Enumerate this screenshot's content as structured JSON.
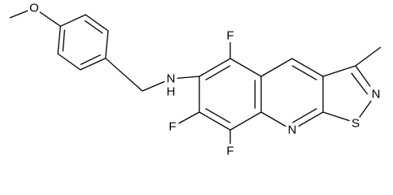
{
  "atoms": {
    "methoxy_o": "O",
    "amine_n": "N",
    "amine_h": "H",
    "f5": "F",
    "f7": "F",
    "f8": "F",
    "ring_n": "N",
    "ring_s": "S",
    "isothiazole_n": "N"
  }
}
